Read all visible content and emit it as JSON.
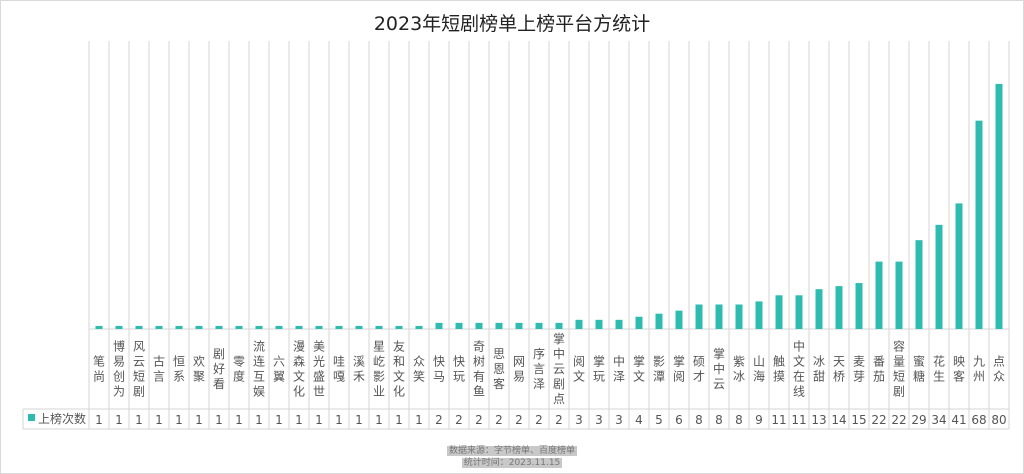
{
  "chart_data": {
    "type": "bar",
    "title": "2023年短剧榜单上榜平台方统计",
    "categories": [
      "笔尚",
      "博易创为",
      "风云短剧",
      "古言",
      "恒系",
      "欢聚",
      "剧好看",
      "零度",
      "流连互娱",
      "六翼",
      "漫森文化",
      "美光盛世",
      "哇嘎",
      "溪禾",
      "星屹影业",
      "友和文化",
      "众笑",
      "快马",
      "快玩",
      "奇树有鱼",
      "思恩客",
      "网易",
      "序言泽",
      "掌中云剧点",
      "阅文",
      "掌玩",
      "中泽",
      "掌文",
      "影潭",
      "掌阅",
      "硕才",
      "掌中云",
      "紫冰",
      "山海",
      "触摸",
      "中文在线",
      "冰甜",
      "天桥",
      "麦芽",
      "番茄",
      "容量短剧",
      "蜜糖",
      "花生",
      "映客",
      "九州",
      "点众"
    ],
    "series": [
      {
        "name": "上榜次数",
        "values": [
          1,
          1,
          1,
          1,
          1,
          1,
          1,
          1,
          1,
          1,
          1,
          1,
          1,
          1,
          1,
          1,
          1,
          2,
          2,
          2,
          2,
          2,
          2,
          2,
          3,
          3,
          3,
          4,
          5,
          6,
          8,
          8,
          8,
          9,
          11,
          11,
          13,
          14,
          15,
          22,
          22,
          29,
          34,
          41,
          68,
          80
        ],
        "color": "#2fbcb0"
      }
    ],
    "legend": "bottom-left data table",
    "grid": "vertical category lines",
    "ylim": [
      0,
      94
    ]
  },
  "footer": {
    "source": "数据来源：字节榜单、百度榜单",
    "date": "统计时间：2023.11.15"
  }
}
